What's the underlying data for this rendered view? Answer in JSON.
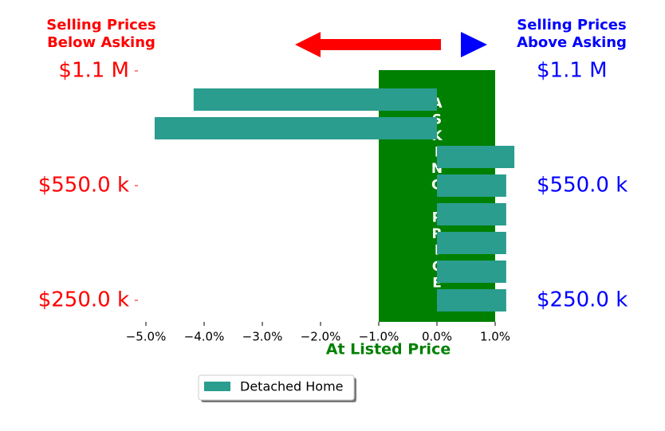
{
  "chart_data": {
    "type": "barh",
    "title_left": [
      "Selling Prices",
      "Below Asking"
    ],
    "title_right": [
      "Selling Prices",
      "Above Asking"
    ],
    "xlabel": "At Listed Price",
    "categories": [
      "$1.1 M",
      null,
      null,
      null,
      "$550.0 k",
      null,
      null,
      null,
      "$250.0 k"
    ],
    "series": [
      {
        "name": "Detached Home",
        "color": "#2a9d8f",
        "values": [
          null,
          -4.18,
          -4.85,
          1.33,
          1.19,
          1.19,
          1.19,
          1.19,
          1.19
        ]
      }
    ],
    "xlim": [
      -5.0,
      1.5
    ],
    "xticks": [
      {
        "value": -5,
        "label": "−5.0%"
      },
      {
        "value": -4,
        "label": "−4.0%"
      },
      {
        "value": -3,
        "label": "−3.0%"
      },
      {
        "value": -2,
        "label": "−2.0%"
      },
      {
        "value": -1,
        "label": "−1.0%"
      },
      {
        "value": 0,
        "label": "0.0%"
      },
      {
        "value": 1,
        "label": "1.0%"
      }
    ],
    "asking_band": {
      "range": [
        -1,
        1
      ],
      "label": "ASKING PRICE",
      "color": "#008000"
    },
    "left_label_color": "#ff0000",
    "right_label_color": "#0000ff",
    "legend": "lower center"
  }
}
